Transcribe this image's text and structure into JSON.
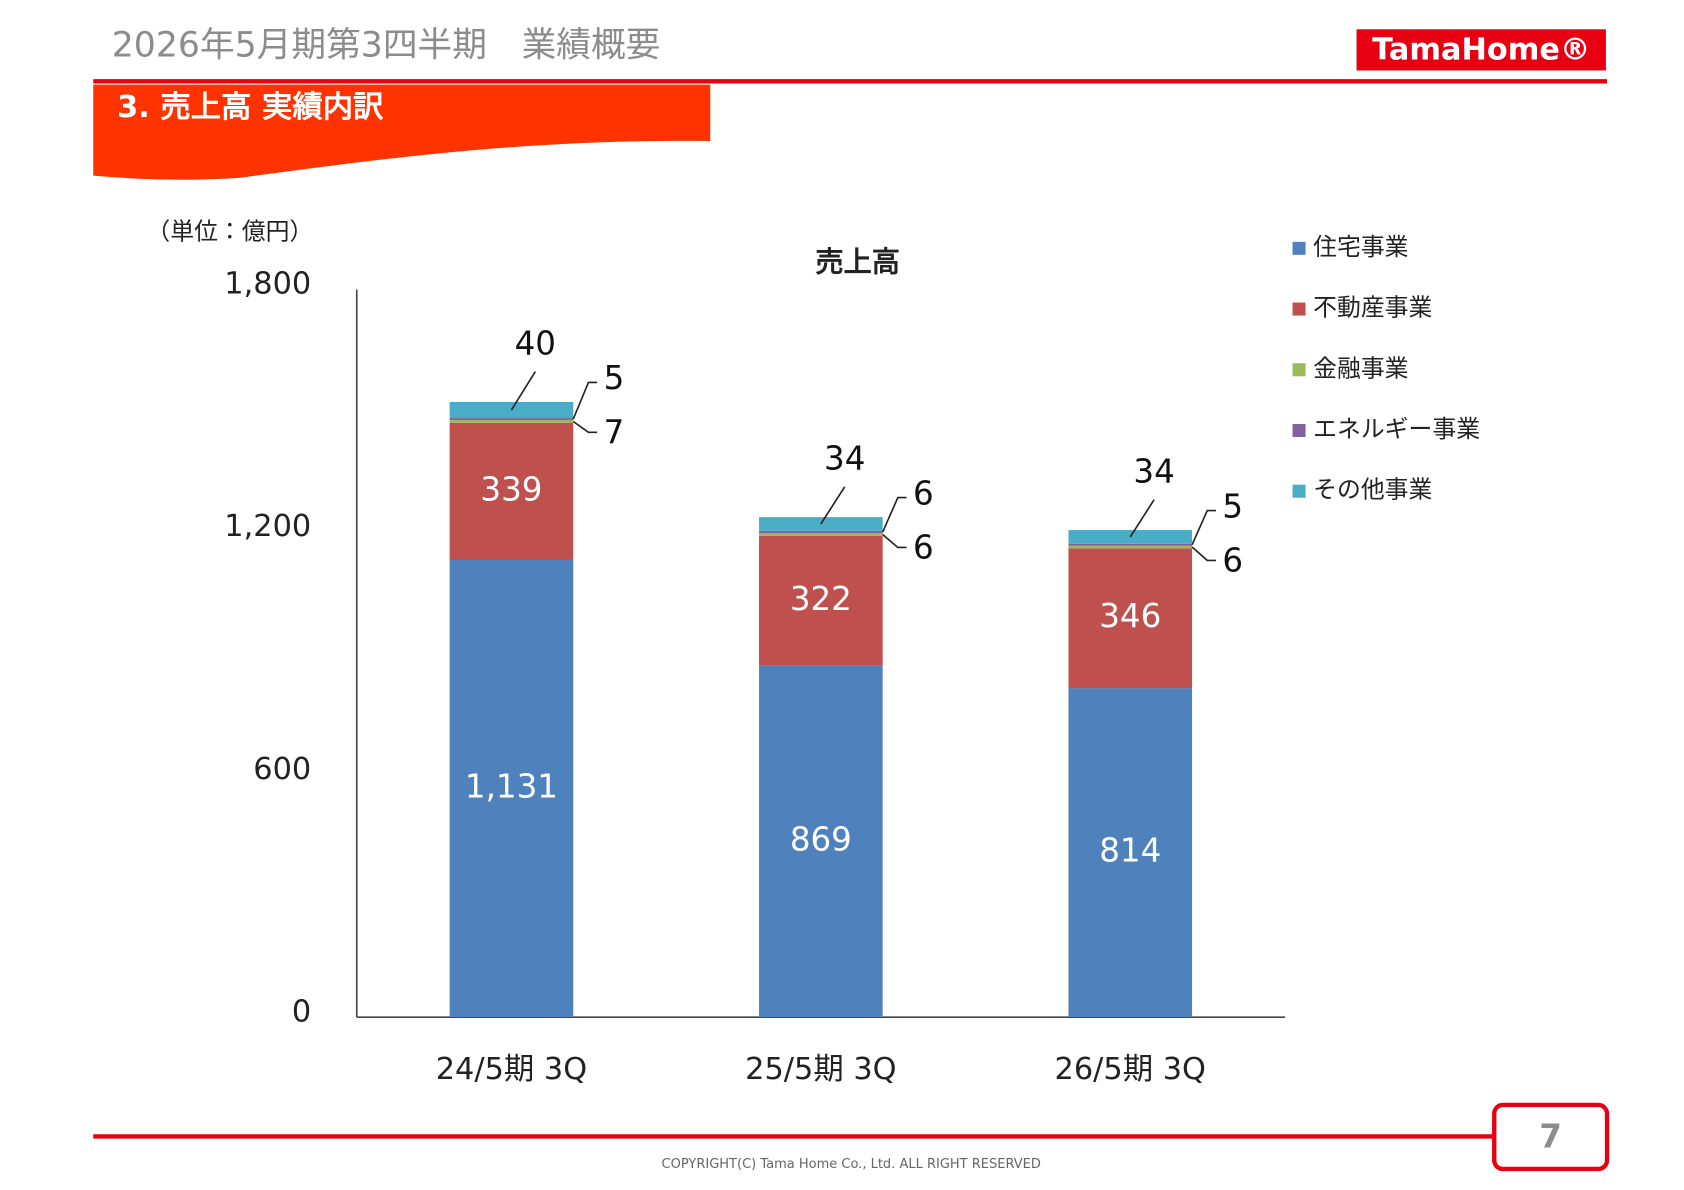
{
  "page": {
    "header_title": "2026年5月期第3四半期　業績概要",
    "section_title": "3. 売上高 実績内訳",
    "logo": "TamaHome®",
    "unit": "（単位：億円）",
    "page_number": "7",
    "copyright": "COPYRIGHT(C)  Tama Home Co., Ltd.   ALL RIGHT RESERVED"
  },
  "chart_data": {
    "type": "stacked-bar",
    "title": "売上高",
    "categories": [
      "24/5期 3Q",
      "25/5期 3Q",
      "26/5期 3Q"
    ],
    "series": [
      {
        "name": "住宅事業",
        "color": "#4f81bd",
        "values": [
          1131,
          869,
          814
        ]
      },
      {
        "name": "不動産事業",
        "color": "#c0504d",
        "values": [
          339,
          322,
          346
        ]
      },
      {
        "name": "金融事業",
        "color": "#9bbb59",
        "values": [
          7,
          6,
          6
        ]
      },
      {
        "name": "エネルギー事業",
        "color": "#8064a2",
        "values": [
          5,
          6,
          5
        ]
      },
      {
        "name": "その他事業",
        "color": "#4bacc6",
        "values": [
          40,
          34,
          34
        ]
      }
    ],
    "ylim": [
      0,
      1800
    ],
    "yticks": [
      0,
      600,
      {
        "value": 1200,
        "label": "1,200"
      },
      {
        "value": 1800,
        "label": "1,800"
      }
    ],
    "value_labels": [
      [
        "1,131",
        "869",
        "814"
      ],
      null,
      null,
      null,
      null
    ],
    "legend": "right"
  }
}
